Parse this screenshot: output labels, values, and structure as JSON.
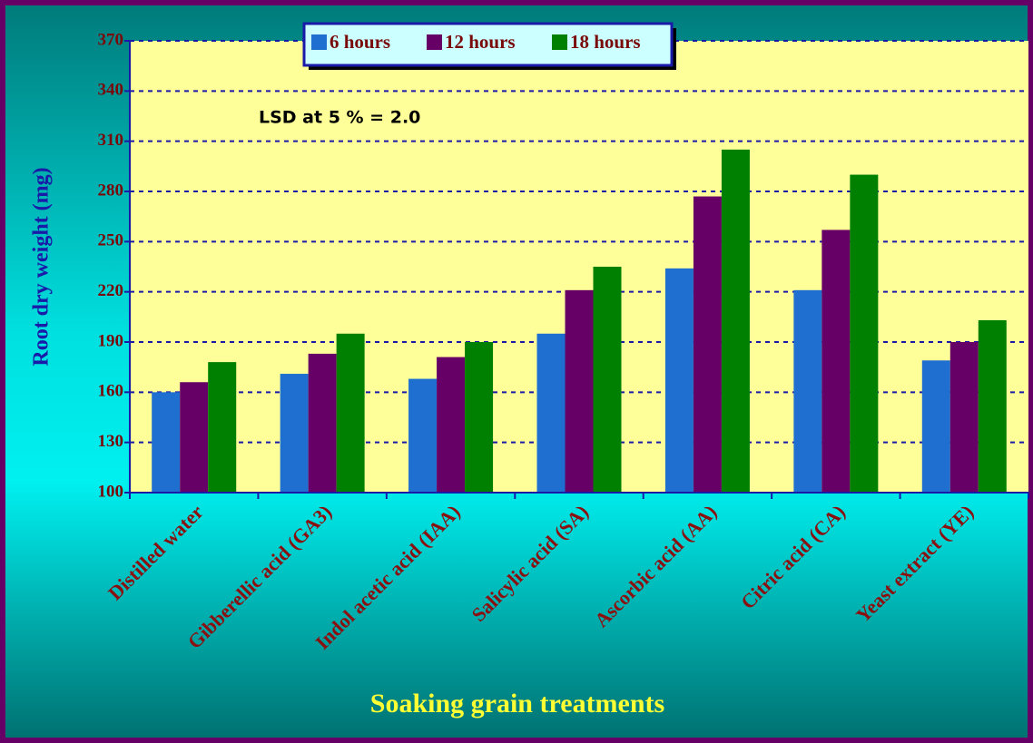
{
  "chart_data": {
    "type": "bar",
    "xlabel": "Soaking grain treatments",
    "ylabel": "Root dry weight (mg)",
    "annotation": "LSD at 5 % = 2.0",
    "categories": [
      "Distilled water",
      "Gibberellic acid (GA3)",
      "Indol acetic acid (IAA)",
      "Salicylic acid (SA)",
      "Ascorbic acid (AA)",
      "Citric acid (CA)",
      "Yeast extract (YE)"
    ],
    "series": [
      {
        "name": "6 hours",
        "color": "#1f6fd1",
        "values": [
          160,
          171,
          168,
          195,
          234,
          221,
          179
        ]
      },
      {
        "name": "12 hours",
        "color": "#660066",
        "values": [
          166,
          183,
          181,
          221,
          277,
          257,
          190
        ]
      },
      {
        "name": "18 hours",
        "color": "#008000",
        "values": [
          178,
          195,
          190,
          235,
          305,
          290,
          203
        ]
      }
    ],
    "ylim": [
      100,
      370
    ],
    "yticks": [
      100,
      130,
      160,
      190,
      220,
      250,
      280,
      310,
      340,
      370
    ],
    "grid": true,
    "legend": "top"
  }
}
